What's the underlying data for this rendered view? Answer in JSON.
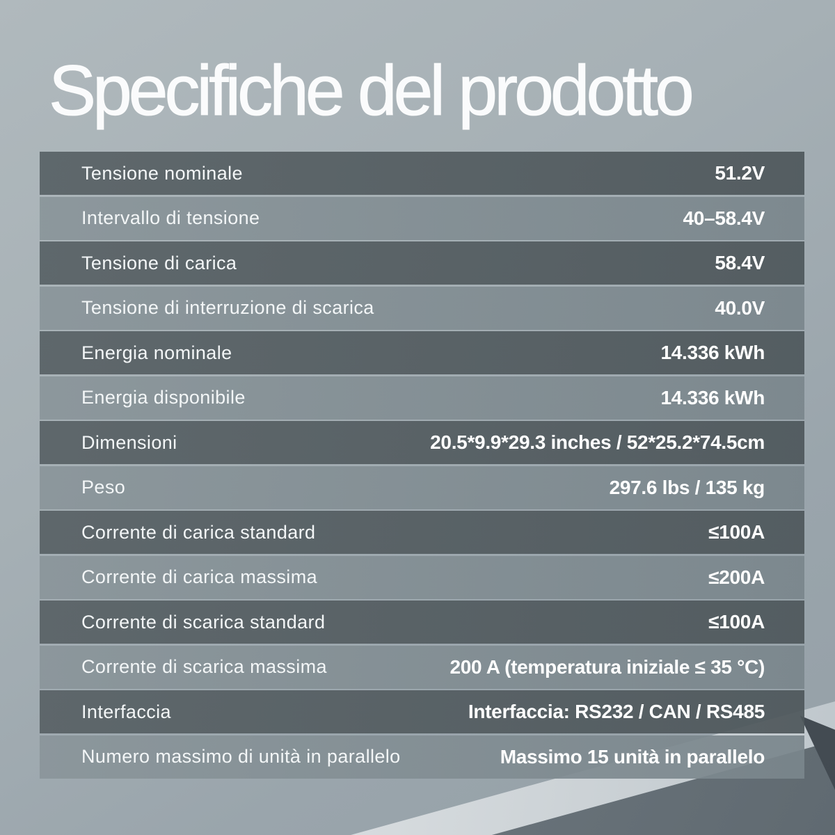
{
  "page": {
    "title": "Specifiche del prodotto"
  },
  "table": {
    "rows": [
      {
        "label": "Tensione nominale",
        "value": "51.2V"
      },
      {
        "label": "Intervallo di tensione",
        "value": "40–58.4V"
      },
      {
        "label": "Tensione di carica",
        "value": "58.4V"
      },
      {
        "label": "Tensione di interruzione di scarica",
        "value": "40.0V"
      },
      {
        "label": "Energia nominale",
        "value": "14.336 kWh"
      },
      {
        "label": "Energia disponibile",
        "value": "14.336 kWh"
      },
      {
        "label": "Dimensioni",
        "value": "20.5*9.9*29.3 inches / 52*25.2*74.5cm"
      },
      {
        "label": "Peso",
        "value": "297.6 lbs / 135 kg"
      },
      {
        "label": "Corrente di carica standard",
        "value": "≤100A"
      },
      {
        "label": "Corrente di carica massima",
        "value": "≤200A"
      },
      {
        "label": "Corrente di scarica standard",
        "value": "≤100A"
      },
      {
        "label": "Corrente di scarica massima",
        "value": "200 A (temperatura iniziale ≤ 35 °C)"
      },
      {
        "label": "Interfaccia",
        "value": "Interfaccia: RS232 / CAN / RS485"
      },
      {
        "label": "Numero massimo di unità in parallelo",
        "value": "Massimo 15 unità in parallelo"
      }
    ]
  },
  "colors": {
    "background_top": "#b0b9bd",
    "background_bottom": "#95a0a7",
    "row_dark": "#5d6568",
    "row_light": "#8c989d",
    "reflection_band": "#d5dadd",
    "table_surface": "#6f7980",
    "product_corner": "#424a51",
    "text": "#ffffff"
  }
}
